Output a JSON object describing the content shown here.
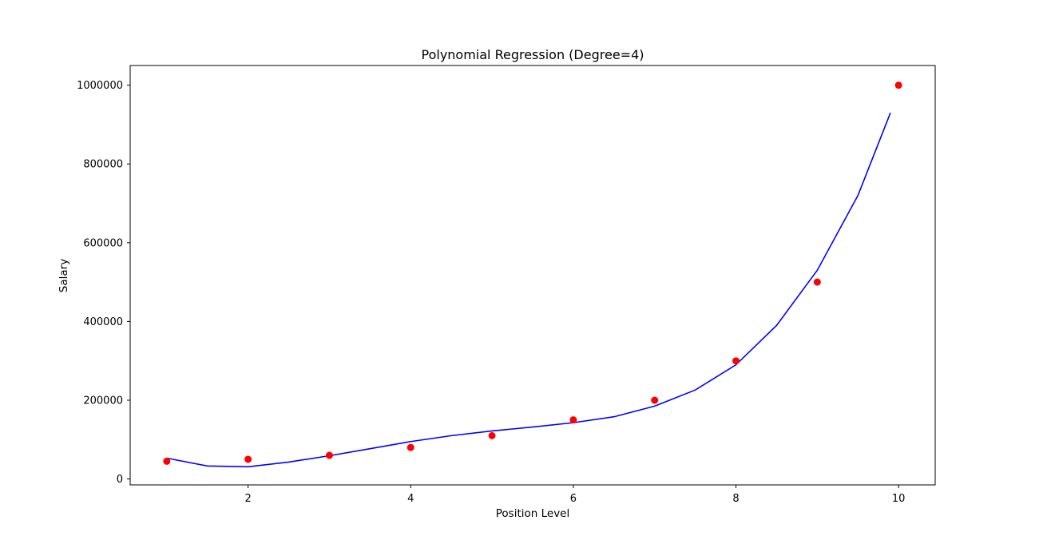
{
  "chart_data": {
    "type": "scatter",
    "title": "Polynomial Regression (Degree=4)",
    "xlabel": "Position Level",
    "ylabel": "Salary",
    "xlim": [
      0.55,
      10.45
    ],
    "ylim": [
      -15000,
      1050000
    ],
    "xticks": [
      2,
      4,
      6,
      8,
      10
    ],
    "yticks": [
      0,
      200000,
      400000,
      600000,
      800000,
      1000000
    ],
    "grid": false,
    "series": [
      {
        "kind": "scatter",
        "color": "#ff0000",
        "x": [
          1,
          2,
          3,
          4,
          5,
          6,
          7,
          8,
          9,
          10
        ],
        "y": [
          45000,
          50000,
          60000,
          80000,
          110000,
          150000,
          200000,
          300000,
          500000,
          1000000
        ]
      },
      {
        "kind": "line",
        "color": "#0000ff",
        "x": [
          1,
          1.5,
          2,
          2.5,
          3,
          3.5,
          4,
          4.5,
          5,
          5.5,
          6,
          6.5,
          7,
          7.5,
          8,
          8.5,
          9,
          9.5,
          9.9
        ],
        "y": [
          53000,
          33000,
          31000,
          43000,
          59000,
          77000,
          95000,
          110000,
          122000,
          132000,
          143000,
          158000,
          185000,
          226000,
          290000,
          390000,
          530000,
          720000,
          930000
        ]
      }
    ]
  }
}
